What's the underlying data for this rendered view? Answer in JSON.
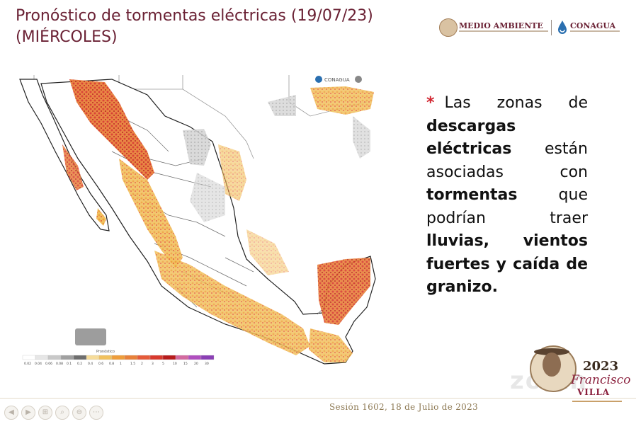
{
  "header": {
    "title_line1": "Pronóstico de tormentas eléctricas (19/07/23)",
    "title_line2": "(MIÉRCOLES)"
  },
  "logos": {
    "medio_ambiente": "MEDIO AMBIENTE",
    "conagua": "CONAGUA"
  },
  "map": {
    "legend_title": "Pronóstico",
    "legend_colors": [
      "#ffffff",
      "#e6e6e6",
      "#c8c8c8",
      "#a0a0a0",
      "#6e6e6e",
      "#f6dc9a",
      "#f1c15e",
      "#ee9d3b",
      "#e8813a",
      "#e55b3a",
      "#d83a2e",
      "#b71c1c",
      "#d36aa0",
      "#b04fbf",
      "#8b3fb5"
    ],
    "legend_ticks": [
      "0.02",
      "0.04",
      "0.06",
      "0.08",
      "0.1",
      "0.2",
      "0.4",
      "0.6",
      "0.8",
      "1",
      "1.5",
      "2",
      "3",
      "5",
      "10",
      "15",
      "20",
      "30"
    ],
    "inset_logo_text": "CONAGUA"
  },
  "body_text": {
    "asterisk": "*",
    "intro": "Las zonas de",
    "bold1": "descargas eléctricas",
    "mid1": "están asociadas con",
    "bold2": "tormentas",
    "mid2": "que podrían traer",
    "bold3": "lluvias, vientos fuertes y caída de granizo."
  },
  "footer": {
    "session": "Sesión 1602, 18 de Julio de 2023"
  },
  "branding": {
    "year": "2023",
    "name": "Francisco",
    "surname": "VILLA",
    "watermark": "zoom"
  },
  "toolbar": {
    "buttons": [
      "◀",
      "▶",
      "⊞",
      "⌕",
      "⊖",
      "⋯"
    ]
  }
}
